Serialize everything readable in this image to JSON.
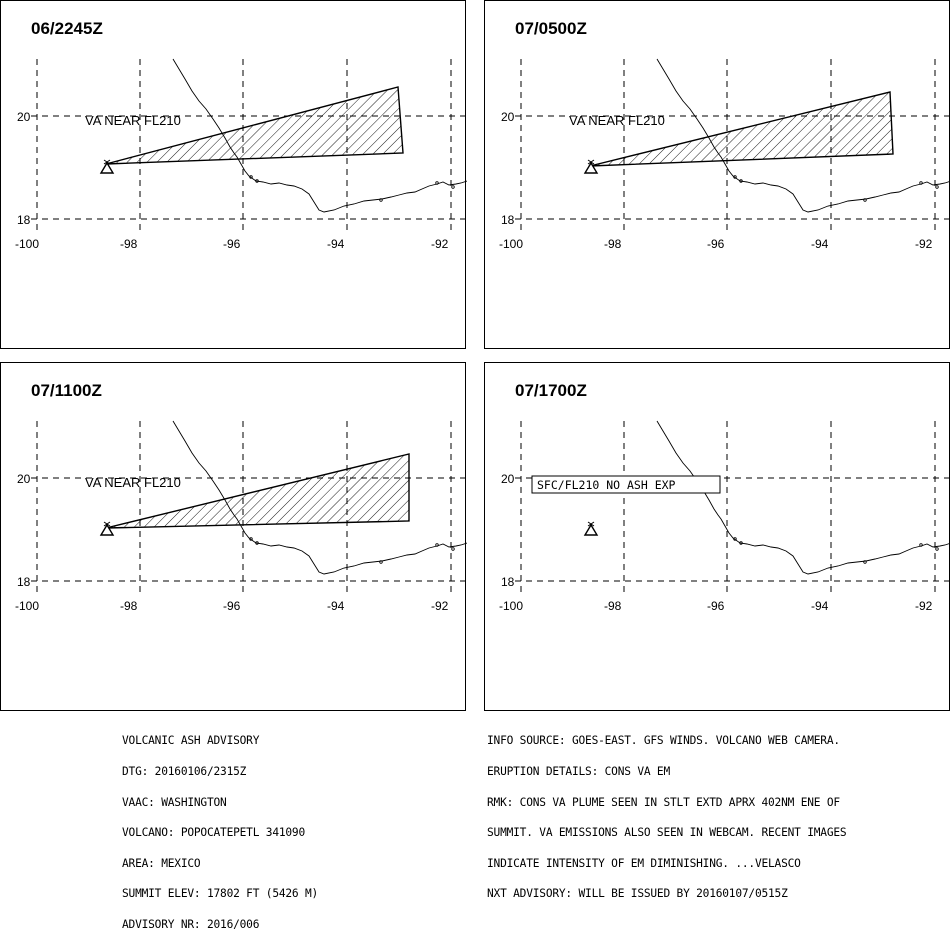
{
  "colors": {
    "ink": "#000000",
    "background": "#ffffff"
  },
  "axis": {
    "lat_labels": [
      "20",
      "18"
    ],
    "lon_labels": [
      "-100",
      "-98",
      "-96",
      "-94",
      "-92"
    ]
  },
  "panels": [
    {
      "time": "06/2245Z",
      "label": "VA NEAR FL210",
      "label_boxed": false,
      "has_plume": true
    },
    {
      "time": "07/0500Z",
      "label": "VA NEAR FL210",
      "label_boxed": false,
      "has_plume": true
    },
    {
      "time": "07/1100Z",
      "label": "VA NEAR FL210",
      "label_boxed": false,
      "has_plume": true
    },
    {
      "time": "07/1700Z",
      "label": "SFC/FL210 NO ASH EXP",
      "label_boxed": true,
      "has_plume": false
    }
  ],
  "volcano_icon": "volcano-triangle-icon",
  "footer": {
    "left": [
      "VOLCANIC ASH ADVISORY",
      "DTG: 20160106/2315Z",
      "VAAC: WASHINGTON",
      "VOLCANO: POPOCATEPETL 341090",
      "AREA: MEXICO",
      "SUMMIT ELEV: 17802 FT (5426 M)",
      "ADVISORY NR: 2016/006"
    ],
    "right": [
      "INFO SOURCE: GOES-EAST. GFS WINDS. VOLCANO WEB CAMERA.",
      "ERUPTION DETAILS: CONS VA EM",
      "RMK: CONS VA PLUME SEEN IN STLT EXTD APRX 402NM ENE OF",
      "SUMMIT. VA EMISSIONS ALSO SEEN IN WEBCAM. RECENT IMAGES",
      "INDICATE INTENSITY OF EM DIMINISHING. ...VELASCO",
      "NXT ADVISORY: WILL BE ISSUED BY 20160107/0515Z"
    ]
  }
}
